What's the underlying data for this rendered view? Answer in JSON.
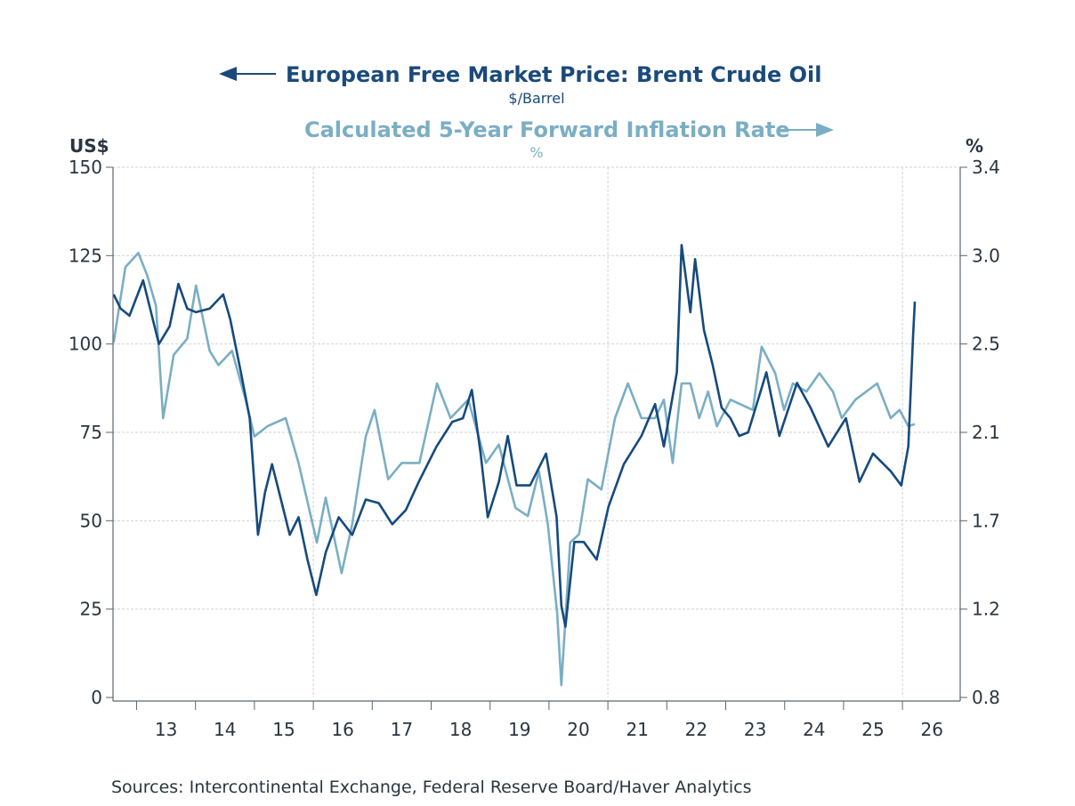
{
  "chart_data": {
    "type": "line",
    "title": "European Free Market Price: Brent Crude Oil",
    "title_unit": "$/Barrel",
    "subtitle": "Calculated 5-Year Forward Inflation Rate",
    "subtitle_unit": "%",
    "left_axis": {
      "label": "US$",
      "ylim": [
        0,
        150
      ],
      "ticks": [
        0,
        25,
        50,
        75,
        100,
        125,
        150
      ],
      "tick_labels": [
        "0",
        "25",
        "50",
        "75",
        "100",
        "125",
        "150"
      ]
    },
    "right_axis": {
      "label": "%",
      "ylim": [
        0.8,
        3.4
      ],
      "ticks": [
        0.8,
        1.2333,
        1.6667,
        2.1,
        2.5333,
        2.9667,
        3.4
      ],
      "tick_labels": [
        "0.8",
        "1.2",
        "1.7",
        "2.1",
        "2.5",
        "3.0",
        "3.4"
      ]
    },
    "x_axis": {
      "xlim": [
        2012.6,
        2026.98
      ],
      "year_ticks": [
        2013,
        2014,
        2015,
        2016,
        2017,
        2018,
        2019,
        2020,
        2021,
        2022,
        2023,
        2024,
        2025,
        2026
      ],
      "labels": [
        "13",
        "14",
        "15",
        "16",
        "17",
        "18",
        "19",
        "20",
        "21",
        "22",
        "23",
        "24",
        "25",
        "26"
      ],
      "label_positions": [
        2013.5,
        2014.5,
        2015.5,
        2016.5,
        2017.5,
        2018.5,
        2019.5,
        2020.5,
        2021.5,
        2022.5,
        2023.5,
        2024.5,
        2025.5,
        2026.5
      ],
      "vertical_gridlines": [
        2016,
        2021,
        2026
      ]
    },
    "grid": true,
    "legend": "top-center",
    "series": [
      {
        "name": "European Free Market Price: Brent Crude Oil",
        "axis": "left",
        "color": "#164a7e",
        "points": [
          [
            2012.61,
            114
          ],
          [
            2012.73,
            110
          ],
          [
            2012.88,
            108
          ],
          [
            2013.11,
            118
          ],
          [
            2013.26,
            108
          ],
          [
            2013.38,
            100
          ],
          [
            2013.56,
            105
          ],
          [
            2013.71,
            117
          ],
          [
            2013.86,
            110
          ],
          [
            2014.01,
            109
          ],
          [
            2014.24,
            110
          ],
          [
            2014.47,
            114
          ],
          [
            2014.59,
            107
          ],
          [
            2014.77,
            92
          ],
          [
            2014.92,
            79
          ],
          [
            2015.06,
            46
          ],
          [
            2015.18,
            58
          ],
          [
            2015.3,
            66
          ],
          [
            2015.45,
            56
          ],
          [
            2015.6,
            46
          ],
          [
            2015.75,
            51
          ],
          [
            2015.9,
            39
          ],
          [
            2016.05,
            29
          ],
          [
            2016.21,
            41
          ],
          [
            2016.43,
            51
          ],
          [
            2016.66,
            46
          ],
          [
            2016.89,
            56
          ],
          [
            2017.11,
            55
          ],
          [
            2017.34,
            49
          ],
          [
            2017.57,
            53
          ],
          [
            2017.79,
            61
          ],
          [
            2018.09,
            71
          ],
          [
            2018.36,
            78
          ],
          [
            2018.54,
            79
          ],
          [
            2018.69,
            87
          ],
          [
            2018.84,
            69
          ],
          [
            2018.96,
            51
          ],
          [
            2019.15,
            61
          ],
          [
            2019.3,
            74
          ],
          [
            2019.45,
            60
          ],
          [
            2019.68,
            60
          ],
          [
            2019.95,
            69
          ],
          [
            2020.13,
            51
          ],
          [
            2020.21,
            26
          ],
          [
            2020.28,
            20
          ],
          [
            2020.43,
            44
          ],
          [
            2020.59,
            44
          ],
          [
            2020.81,
            39
          ],
          [
            2021.01,
            54
          ],
          [
            2021.27,
            66
          ],
          [
            2021.57,
            74
          ],
          [
            2021.8,
            83
          ],
          [
            2021.95,
            71
          ],
          [
            2022.17,
            92
          ],
          [
            2022.25,
            128
          ],
          [
            2022.4,
            109
          ],
          [
            2022.48,
            124
          ],
          [
            2022.63,
            104
          ],
          [
            2022.78,
            94
          ],
          [
            2022.93,
            82
          ],
          [
            2023.08,
            79
          ],
          [
            2023.23,
            74
          ],
          [
            2023.38,
            75
          ],
          [
            2023.69,
            92
          ],
          [
            2023.91,
            74
          ],
          [
            2024.21,
            89
          ],
          [
            2024.44,
            82
          ],
          [
            2024.74,
            71
          ],
          [
            2025.04,
            79
          ],
          [
            2025.27,
            61
          ],
          [
            2025.5,
            69
          ],
          [
            2025.8,
            64
          ],
          [
            2025.98,
            60
          ],
          [
            2026.1,
            71
          ],
          [
            2026.18,
            102
          ],
          [
            2026.21,
            112
          ]
        ]
      },
      {
        "name": "Calculated 5-Year Forward Inflation Rate",
        "axis": "right",
        "color": "#7aaec4",
        "points": [
          [
            2012.61,
            2.54
          ],
          [
            2012.81,
            2.91
          ],
          [
            2013.03,
            2.98
          ],
          [
            2013.18,
            2.87
          ],
          [
            2013.33,
            2.72
          ],
          [
            2013.45,
            2.17
          ],
          [
            2013.63,
            2.48
          ],
          [
            2013.86,
            2.56
          ],
          [
            2014.01,
            2.82
          ],
          [
            2014.24,
            2.5
          ],
          [
            2014.39,
            2.43
          ],
          [
            2014.62,
            2.5
          ],
          [
            2014.85,
            2.26
          ],
          [
            2015.0,
            2.08
          ],
          [
            2015.22,
            2.13
          ],
          [
            2015.53,
            2.17
          ],
          [
            2015.75,
            1.95
          ],
          [
            2016.06,
            1.56
          ],
          [
            2016.21,
            1.78
          ],
          [
            2016.48,
            1.41
          ],
          [
            2016.66,
            1.65
          ],
          [
            2016.89,
            2.08
          ],
          [
            2017.04,
            2.21
          ],
          [
            2017.27,
            1.87
          ],
          [
            2017.5,
            1.95
          ],
          [
            2017.8,
            1.95
          ],
          [
            2018.1,
            2.34
          ],
          [
            2018.33,
            2.17
          ],
          [
            2018.63,
            2.26
          ],
          [
            2018.93,
            1.95
          ],
          [
            2019.15,
            2.04
          ],
          [
            2019.43,
            1.73
          ],
          [
            2019.64,
            1.69
          ],
          [
            2019.83,
            1.91
          ],
          [
            2019.98,
            1.65
          ],
          [
            2020.14,
            1.21
          ],
          [
            2020.21,
            0.86
          ],
          [
            2020.36,
            1.56
          ],
          [
            2020.51,
            1.6
          ],
          [
            2020.66,
            1.87
          ],
          [
            2020.89,
            1.82
          ],
          [
            2021.12,
            2.17
          ],
          [
            2021.34,
            2.34
          ],
          [
            2021.57,
            2.17
          ],
          [
            2021.8,
            2.17
          ],
          [
            2021.95,
            2.26
          ],
          [
            2022.1,
            1.95
          ],
          [
            2022.25,
            2.34
          ],
          [
            2022.4,
            2.34
          ],
          [
            2022.55,
            2.17
          ],
          [
            2022.7,
            2.3
          ],
          [
            2022.85,
            2.13
          ],
          [
            2023.08,
            2.26
          ],
          [
            2023.46,
            2.21
          ],
          [
            2023.61,
            2.52
          ],
          [
            2023.84,
            2.39
          ],
          [
            2023.99,
            2.21
          ],
          [
            2024.14,
            2.34
          ],
          [
            2024.37,
            2.3
          ],
          [
            2024.59,
            2.39
          ],
          [
            2024.82,
            2.3
          ],
          [
            2024.97,
            2.17
          ],
          [
            2025.2,
            2.26
          ],
          [
            2025.57,
            2.34
          ],
          [
            2025.8,
            2.17
          ],
          [
            2025.95,
            2.21
          ],
          [
            2026.1,
            2.13
          ],
          [
            2026.21,
            2.14
          ]
        ]
      }
    ],
    "source": "Sources:  Intercontinental Exchange, Federal Reserve Board/Haver Analytics"
  }
}
